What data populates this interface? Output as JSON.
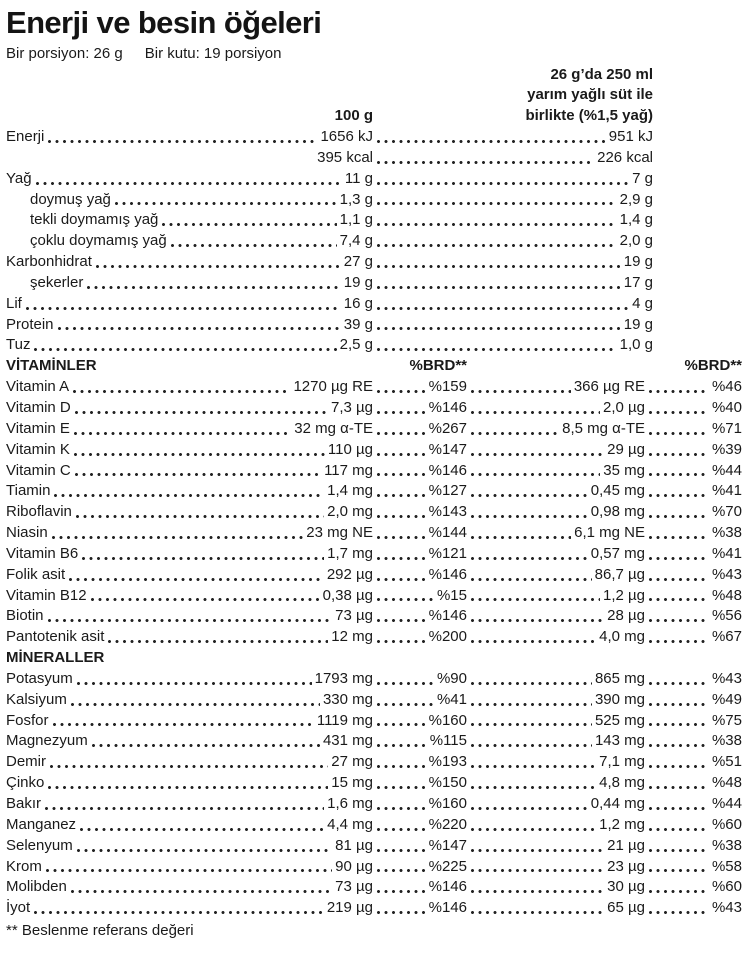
{
  "title": "Enerji ve besin öğeleri",
  "serving": {
    "portion": "Bir porsiyon: 26 g",
    "box": "Bir kutu: 19 porsiyon"
  },
  "headers": {
    "col1": "100 g",
    "col2_lines": [
      "26 g’da 250 ml",
      "yarım yağlı süt ile",
      "birlikte (%1,5 yağ)"
    ],
    "brd_label": "%BRD**"
  },
  "macros": [
    {
      "label": "Enerji",
      "v1": "1656 kJ",
      "v2": "951 kJ"
    },
    {
      "label": "",
      "v1": "395 kcal",
      "v2": "226 kcal",
      "no_leader": true
    },
    {
      "label": "Yağ",
      "v1": "11 g",
      "v2": "7 g"
    },
    {
      "label": "doymuş yağ",
      "indent": true,
      "v1": "1,3 g",
      "v2": "2,9 g"
    },
    {
      "label": "tekli doymamış yağ",
      "indent": true,
      "v1": "1,1 g",
      "v2": "1,4 g"
    },
    {
      "label": "çoklu doymamış yağ",
      "indent": true,
      "v1": "7,4 g",
      "v2": "2,0 g"
    },
    {
      "label": "Karbonhidrat",
      "v1": "27 g",
      "v2": "19 g"
    },
    {
      "label": "şekerler",
      "indent": true,
      "v1": "19 g",
      "v2": "17 g"
    },
    {
      "label": "Lif",
      "v1": "16 g",
      "v2": "4 g"
    },
    {
      "label": "Protein",
      "v1": "39 g",
      "v2": "19 g"
    },
    {
      "label": "Tuz",
      "v1": "2,5 g",
      "v2": "1,0 g"
    }
  ],
  "vitamins": {
    "heading": "VİTAMİNLER",
    "rows": [
      {
        "label": "Vitamin A",
        "v1": "1270 µg RE",
        "brd1": "%159",
        "v2": "366 µg RE",
        "brd2": "%46"
      },
      {
        "label": "Vitamin D",
        "v1": "7,3 µg",
        "brd1": "%146",
        "v2": "2,0 µg",
        "brd2": "%40"
      },
      {
        "label": "Vitamin E",
        "v1": "32 mg α-TE",
        "brd1": "%267",
        "v2": "8,5 mg α-TE",
        "brd2": "%71"
      },
      {
        "label": "Vitamin K",
        "v1": "110 µg",
        "brd1": "%147",
        "v2": "29 µg",
        "brd2": "%39"
      },
      {
        "label": "Vitamin C",
        "v1": "117 mg",
        "brd1": "%146",
        "v2": "35 mg",
        "brd2": "%44"
      },
      {
        "label": "Tiamin",
        "v1": "1,4 mg",
        "brd1": "%127",
        "v2": "0,45 mg",
        "brd2": "%41"
      },
      {
        "label": "Riboflavin",
        "v1": "2,0 mg",
        "brd1": "%143",
        "v2": "0,98 mg",
        "brd2": "%70"
      },
      {
        "label": "Niasin",
        "v1": "23 mg NE",
        "brd1": "%144",
        "v2": "6,1 mg NE",
        "brd2": "%38"
      },
      {
        "label": "Vitamin B6",
        "v1": "1,7 mg",
        "brd1": "%121",
        "v2": "0,57 mg",
        "brd2": "%41"
      },
      {
        "label": "Folik asit",
        "v1": "292 µg",
        "brd1": "%146",
        "v2": "86,7 µg",
        "brd2": "%43"
      },
      {
        "label": "Vitamin B12",
        "v1": "0,38 µg",
        "brd1": "%15",
        "v2": "1,2 µg",
        "brd2": "%48"
      },
      {
        "label": "Biotin",
        "v1": "73 µg",
        "brd1": "%146",
        "v2": "28 µg",
        "brd2": "%56"
      },
      {
        "label": "Pantotenik asit",
        "v1": "12 mg",
        "brd1": "%200",
        "v2": "4,0 mg",
        "brd2": "%67"
      }
    ]
  },
  "minerals": {
    "heading": "MİNERALLER",
    "rows": [
      {
        "label": "Potasyum",
        "v1": "1793 mg",
        "brd1": "%90",
        "v2": "865 mg",
        "brd2": "%43"
      },
      {
        "label": "Kalsiyum",
        "v1": "330 mg",
        "brd1": "%41",
        "v2": "390 mg",
        "brd2": "%49"
      },
      {
        "label": "Fosfor",
        "v1": "1119 mg",
        "brd1": "%160",
        "v2": "525 mg",
        "brd2": "%75"
      },
      {
        "label": "Magnezyum",
        "v1": "431 mg",
        "brd1": "%115",
        "v2": "143 mg",
        "brd2": "%38"
      },
      {
        "label": "Demir",
        "v1": "27 mg",
        "brd1": "%193",
        "v2": "7,1 mg",
        "brd2": "%51"
      },
      {
        "label": "Çinko",
        "v1": "15 mg",
        "brd1": "%150",
        "v2": "4,8 mg",
        "brd2": "%48"
      },
      {
        "label": "Bakır",
        "v1": "1,6 mg",
        "brd1": "%160",
        "v2": "0,44 mg",
        "brd2": "%44"
      },
      {
        "label": "Manganez",
        "v1": "4,4 mg",
        "brd1": "%220",
        "v2": "1,2 mg",
        "brd2": "%60"
      },
      {
        "label": "Selenyum",
        "v1": "81 µg",
        "brd1": "%147",
        "v2": "21 µg",
        "brd2": "%38"
      },
      {
        "label": "Krom",
        "v1": "90 µg",
        "brd1": "%225",
        "v2": "23 µg",
        "brd2": "%58"
      },
      {
        "label": "Molibden",
        "v1": "73 µg",
        "brd1": "%146",
        "v2": "30 µg",
        "brd2": "%60"
      },
      {
        "label": "İyot",
        "v1": "219 µg",
        "brd1": "%146",
        "v2": "65 µg",
        "brd2": "%43"
      }
    ]
  },
  "footnote": "** Beslenme referans değeri",
  "colors": {
    "text": "#1a1a1a",
    "background": "#ffffff"
  }
}
